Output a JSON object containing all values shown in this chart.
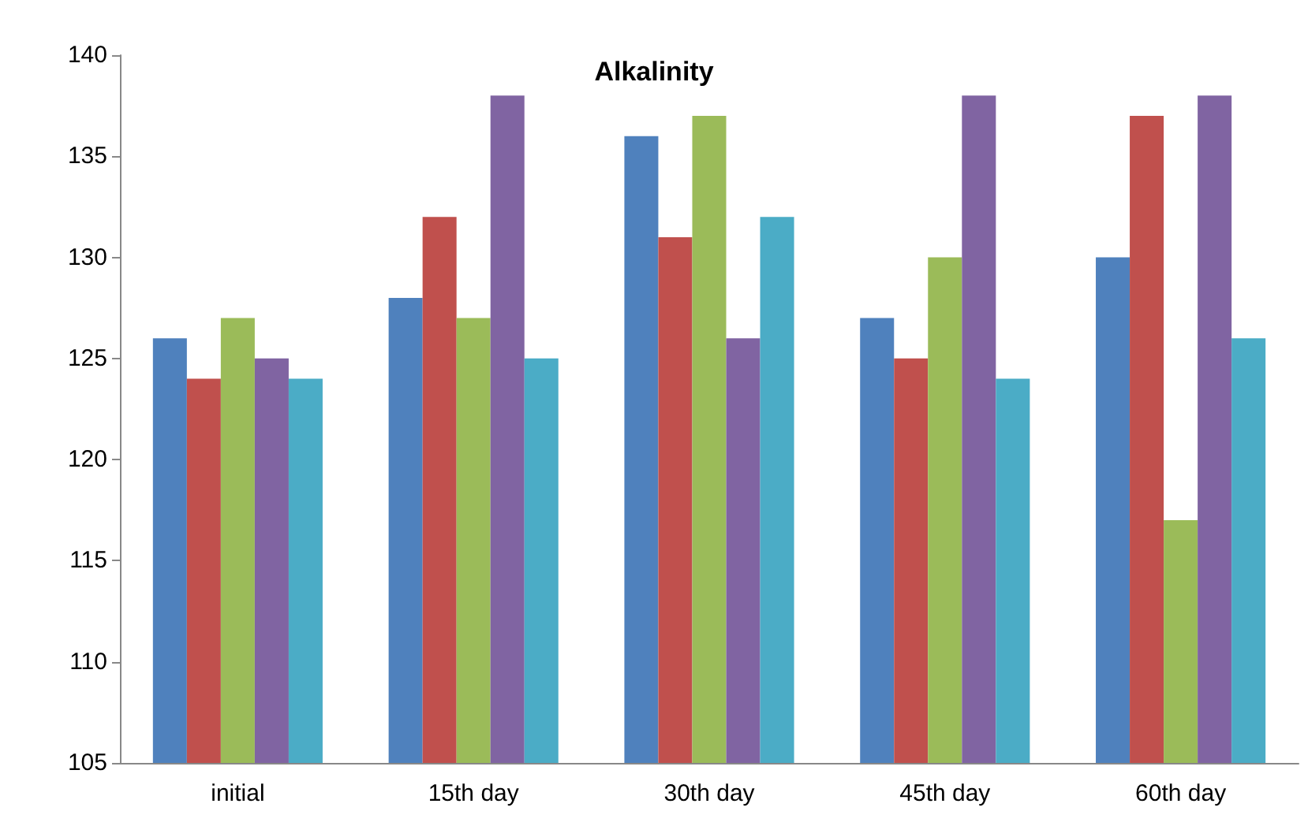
{
  "chart_data": {
    "type": "bar",
    "title": "Alkalinity",
    "categories": [
      "initial",
      "15th day",
      "30th day",
      "45th day",
      "60th day"
    ],
    "series": [
      {
        "color": "#4f81bd",
        "values": [
          126,
          128,
          136,
          127,
          130
        ]
      },
      {
        "color": "#c0504d",
        "values": [
          124,
          132,
          131,
          125,
          137
        ]
      },
      {
        "color": "#9bbb59",
        "values": [
          127,
          127,
          137,
          130,
          117
        ]
      },
      {
        "color": "#8064a2",
        "values": [
          125,
          138,
          126,
          138,
          138
        ]
      },
      {
        "color": "#4bacc6",
        "values": [
          124,
          125,
          132,
          124,
          126
        ]
      }
    ],
    "ylim": [
      105,
      140
    ],
    "yticks": [
      105,
      110,
      115,
      120,
      125,
      130,
      135,
      140
    ],
    "grid": false
  }
}
